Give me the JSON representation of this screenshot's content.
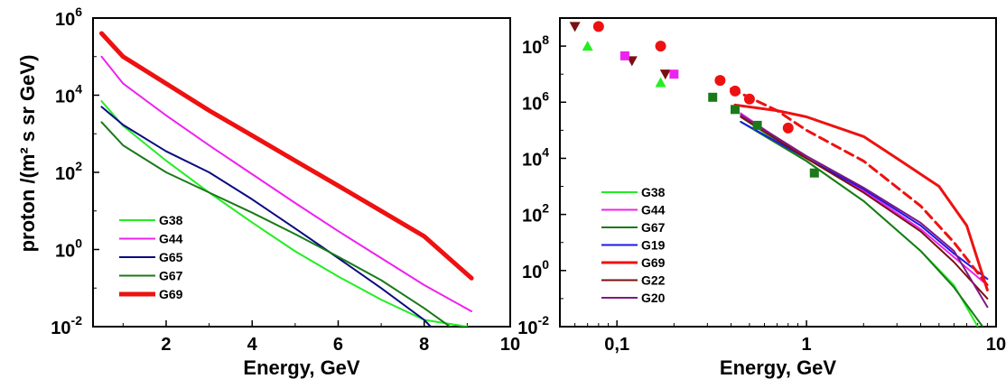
{
  "chart_data": [
    {
      "type": "line",
      "xlabel": "Energy, GeV",
      "ylabel": "proton /(m² s sr GeV)",
      "xscale": "linear",
      "yscale": "log",
      "xlim": [
        0.3,
        10
      ],
      "ylim": [
        0.01,
        1000000
      ],
      "x_ticks": [
        2,
        4,
        6,
        8,
        10
      ],
      "y_ticks": [
        {
          "exp": "-2",
          "value": 0.01
        },
        {
          "exp": "0",
          "value": 1
        },
        {
          "exp": "2",
          "value": 100
        },
        {
          "exp": "4",
          "value": 10000
        },
        {
          "exp": "6",
          "value": 1000000
        }
      ],
      "tick_base": "10",
      "grid": false,
      "legend_position": "bottom-left",
      "series": [
        {
          "name": "G38",
          "color": "#22ee22",
          "width": 2,
          "points": [
            [
              0.5,
              7000
            ],
            [
              1,
              1600
            ],
            [
              2,
              200
            ],
            [
              3,
              30
            ],
            [
              4,
              5
            ],
            [
              5,
              0.9
            ],
            [
              6,
              0.2
            ],
            [
              7,
              0.05
            ],
            [
              8,
              0.015
            ],
            [
              9.0,
              0.01
            ]
          ]
        },
        {
          "name": "G44",
          "color": "#ee22ee",
          "width": 2,
          "points": [
            [
              0.5,
              100000
            ],
            [
              1,
              20000
            ],
            [
              2,
              3000
            ],
            [
              3,
              500
            ],
            [
              4,
              90
            ],
            [
              5,
              16
            ],
            [
              6,
              3
            ],
            [
              7,
              0.6
            ],
            [
              8,
              0.12
            ],
            [
              9.1,
              0.025
            ]
          ]
        },
        {
          "name": "G65",
          "color": "#0a0a80",
          "width": 2,
          "points": [
            [
              0.5,
              5000
            ],
            [
              1,
              1700
            ],
            [
              2,
              350
            ],
            [
              3,
              100
            ],
            [
              4,
              20
            ],
            [
              5,
              3.5
            ],
            [
              6,
              0.6
            ],
            [
              7,
              0.1
            ],
            [
              8,
              0.015
            ],
            [
              8.15,
              0.01
            ]
          ]
        },
        {
          "name": "G67",
          "color": "#1a7a1a",
          "width": 2,
          "points": [
            [
              0.5,
              2000
            ],
            [
              1,
              500
            ],
            [
              2,
              100
            ],
            [
              3,
              30
            ],
            [
              4,
              9
            ],
            [
              5,
              2.5
            ],
            [
              6,
              0.65
            ],
            [
              7,
              0.16
            ],
            [
              8,
              0.03
            ],
            [
              8.6,
              0.01
            ]
          ]
        },
        {
          "name": "G69",
          "color": "#ee1111",
          "width": 5,
          "points": [
            [
              0.5,
              400000
            ],
            [
              1,
              100000
            ],
            [
              2,
              20000
            ],
            [
              3,
              4000
            ],
            [
              4,
              900
            ],
            [
              5,
              200
            ],
            [
              6,
              45
            ],
            [
              7,
              10
            ],
            [
              8,
              2.2
            ],
            [
              9.1,
              0.18
            ]
          ]
        }
      ]
    },
    {
      "type": "line",
      "xlabel": "Energy, GeV",
      "ylabel": "",
      "xscale": "log",
      "yscale": "log",
      "xlim": [
        0.05,
        10
      ],
      "ylim": [
        0.01,
        1000000000
      ],
      "x_ticks": [
        {
          "label": "0,1",
          "value": 0.1
        },
        {
          "label": "1",
          "value": 1
        },
        {
          "label": "10",
          "value": 10
        }
      ],
      "y_ticks": [
        {
          "exp": "-2",
          "value": 0.01
        },
        {
          "exp": "0",
          "value": 1
        },
        {
          "exp": "2",
          "value": 100
        },
        {
          "exp": "4",
          "value": 10000
        },
        {
          "exp": "6",
          "value": 1000000
        },
        {
          "exp": "8",
          "value": 100000000
        }
      ],
      "tick_base": "10",
      "grid": false,
      "legend_position": "bottom-left",
      "series": [
        {
          "name": "G38",
          "color": "#22ee22",
          "width": 2,
          "points": [
            [
              0.45,
              300000
            ],
            [
              1,
              8000
            ],
            [
              2,
              300
            ],
            [
              4,
              5
            ],
            [
              6,
              0.3
            ],
            [
              8,
              0.01
            ]
          ]
        },
        {
          "name": "G44",
          "color": "#ee22ee",
          "width": 2,
          "points": [
            [
              0.45,
              400000
            ],
            [
              1,
              10000
            ],
            [
              2,
              700
            ],
            [
              4,
              30
            ],
            [
              6,
              3
            ],
            [
              9,
              0.3
            ]
          ]
        },
        {
          "name": "G67",
          "color": "#1a7a1a",
          "width": 2,
          "points": [
            [
              0.45,
              200000
            ],
            [
              1,
              8000
            ],
            [
              2,
              300
            ],
            [
              4,
              5
            ],
            [
              6,
              0.25
            ],
            [
              8.5,
              0.01
            ]
          ]
        },
        {
          "name": "G19",
          "color": "#1a1aee",
          "width": 2,
          "points": [
            [
              0.45,
              200000
            ],
            [
              1,
              10000
            ],
            [
              2,
              800
            ],
            [
              4,
              40
            ],
            [
              6,
              4
            ],
            [
              9,
              0.5
            ]
          ]
        },
        {
          "name": "G69",
          "color": "#ee1111",
          "width": 3,
          "points": [
            [
              0.42,
              800000
            ],
            [
              0.7,
              500000
            ],
            [
              1,
              300000
            ],
            [
              2,
              60000
            ],
            [
              3,
              10000
            ],
            [
              5,
              1000
            ],
            [
              7,
              40
            ],
            [
              9,
              0.2
            ]
          ]
        },
        {
          "name": "G22",
          "color": "#7a1010",
          "width": 2,
          "points": [
            [
              0.45,
              300000
            ],
            [
              1,
              10000
            ],
            [
              2,
              600
            ],
            [
              4,
              25
            ],
            [
              6,
              2
            ],
            [
              9,
              0.1
            ]
          ]
        },
        {
          "name": "G20",
          "color": "#801880",
          "width": 2,
          "points": [
            [
              0.45,
              350000
            ],
            [
              1,
              12000
            ],
            [
              2,
              900
            ],
            [
              4,
              50
            ],
            [
              6,
              5
            ],
            [
              9,
              0.05
            ]
          ]
        },
        {
          "name": "",
          "color": "#ee1111",
          "width": 3,
          "dash": true,
          "points": [
            [
              0.4,
              3000000
            ],
            [
              0.7,
              500000
            ],
            [
              1,
              100000
            ],
            [
              2,
              8000
            ],
            [
              4,
              200
            ],
            [
              6,
              10
            ],
            [
              9,
              0.3
            ]
          ]
        }
      ],
      "markers": [
        {
          "shape": "triangle-down",
          "color": "#7a1010",
          "points": [
            [
              0.06,
              500000000
            ],
            [
              0.12,
              30000000
            ],
            [
              0.18,
              10000000
            ]
          ]
        },
        {
          "shape": "circle",
          "color": "#ee1111",
          "points": [
            [
              0.08,
              500000000
            ],
            [
              0.17,
              100000000
            ],
            [
              0.35,
              6000000
            ],
            [
              0.42,
              2500000
            ],
            [
              0.5,
              1300000
            ],
            [
              0.8,
              120000
            ]
          ]
        },
        {
          "shape": "triangle-up",
          "color": "#22ee22",
          "points": [
            [
              0.07,
              100000000
            ],
            [
              0.17,
              5000000
            ]
          ]
        },
        {
          "shape": "square",
          "color": "#ee22ee",
          "points": [
            [
              0.11,
              45000000
            ],
            [
              0.2,
              10000000
            ]
          ]
        },
        {
          "shape": "square",
          "color": "#1a7a1a",
          "points": [
            [
              0.32,
              1500000
            ],
            [
              0.42,
              550000
            ],
            [
              0.55,
              150000
            ],
            [
              1.1,
              3000
            ]
          ]
        }
      ]
    }
  ]
}
